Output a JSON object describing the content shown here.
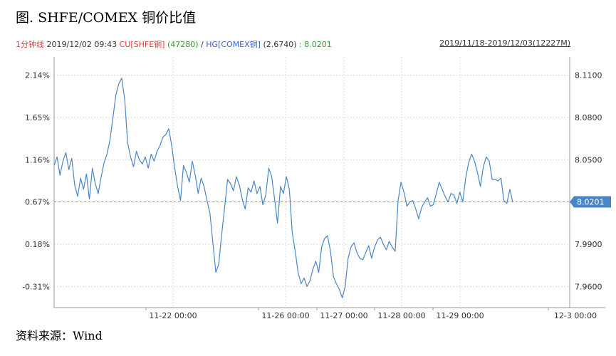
{
  "title": "图.  SHFE/COMEX 铜价比值",
  "legend": {
    "interval": "1分钟线",
    "datetime": "2019/12/02 09:43",
    "cu_name": "CU[SHFE铜]",
    "cu_value": "(47280)",
    "separator": "/",
    "hg_name": "HG[COMEX铜]",
    "hg_value": "(2.6740)",
    "ratio": ": 8.0201"
  },
  "range": "2019/11/18-2019/12/03(12227M)",
  "source": "资料来源：Wind",
  "colors": {
    "line": "#4a86c5",
    "grid": "#dcdcdc",
    "badge": "#4a86c5"
  },
  "chart_data": {
    "type": "line",
    "x_ticks": [
      "11-22 00:00",
      "11-26 00:00",
      "11-27 00:00",
      "11-28 00:00",
      "11-29 00:00",
      "12-3 00:00"
    ],
    "y_left_ticks": [
      "2.14%",
      "1.65%",
      "1.16%",
      "0.67%",
      "0.18%",
      "-0.31%"
    ],
    "y_right_ticks": [
      "8.1100",
      "8.0800",
      "8.0500",
      "8.0200",
      "7.9900",
      "7.9600"
    ],
    "last_value": "8.0201",
    "ylim_right": [
      7.945,
      8.123
    ],
    "grid": true,
    "series": [
      {
        "values": [
          8.046,
          8.052,
          8.039,
          8.049,
          8.055,
          8.043,
          8.051,
          8.032,
          8.024,
          8.037,
          8.029,
          8.04,
          8.022,
          8.044,
          8.033,
          8.026,
          8.038,
          8.048,
          8.054,
          8.064,
          8.08,
          8.096,
          8.104,
          8.108,
          8.093,
          8.062,
          8.052,
          8.045,
          8.056,
          8.05,
          8.047,
          8.052,
          8.044,
          8.054,
          8.049,
          8.056,
          8.06,
          8.066,
          8.068,
          8.072,
          8.06,
          8.044,
          8.031,
          8.021,
          8.046,
          8.041,
          8.034,
          8.049,
          8.039,
          8.026,
          8.037,
          8.031,
          8.021,
          8.012,
          7.991,
          7.97,
          7.976,
          7.997,
          8.016,
          8.036,
          8.033,
          8.028,
          8.038,
          8.032,
          8.022,
          8.015,
          8.03,
          8.027,
          8.035,
          8.026,
          8.031,
          8.018,
          8.025,
          8.044,
          8.038,
          8.022,
          8.005,
          8.031,
          8.026,
          8.038,
          8.029,
          7.998,
          7.985,
          7.97,
          7.962,
          7.966,
          7.96,
          7.964,
          7.972,
          7.978,
          7.97,
          7.988,
          7.994,
          7.996,
          7.985,
          7.967,
          7.962,
          7.958,
          7.952,
          7.96,
          7.98,
          7.988,
          7.991,
          7.984,
          7.98,
          7.979,
          7.984,
          7.989,
          7.98,
          7.988,
          7.993,
          7.995,
          7.99,
          7.986,
          7.992,
          7.988,
          7.985,
          8.021,
          8.034,
          8.027,
          8.017,
          8.02,
          8.021,
          8.015,
          8.008,
          8.016,
          8.02,
          8.023,
          8.017,
          8.018,
          8.026,
          8.034,
          8.029,
          8.024,
          8.02,
          8.026,
          8.025,
          8.019,
          8.027,
          8.02,
          8.037,
          8.048,
          8.054,
          8.049,
          8.041,
          8.031,
          8.045,
          8.052,
          8.049,
          8.036,
          8.036,
          8.035,
          8.037,
          8.021,
          8.019,
          8.029,
          8.02
        ]
      }
    ]
  }
}
